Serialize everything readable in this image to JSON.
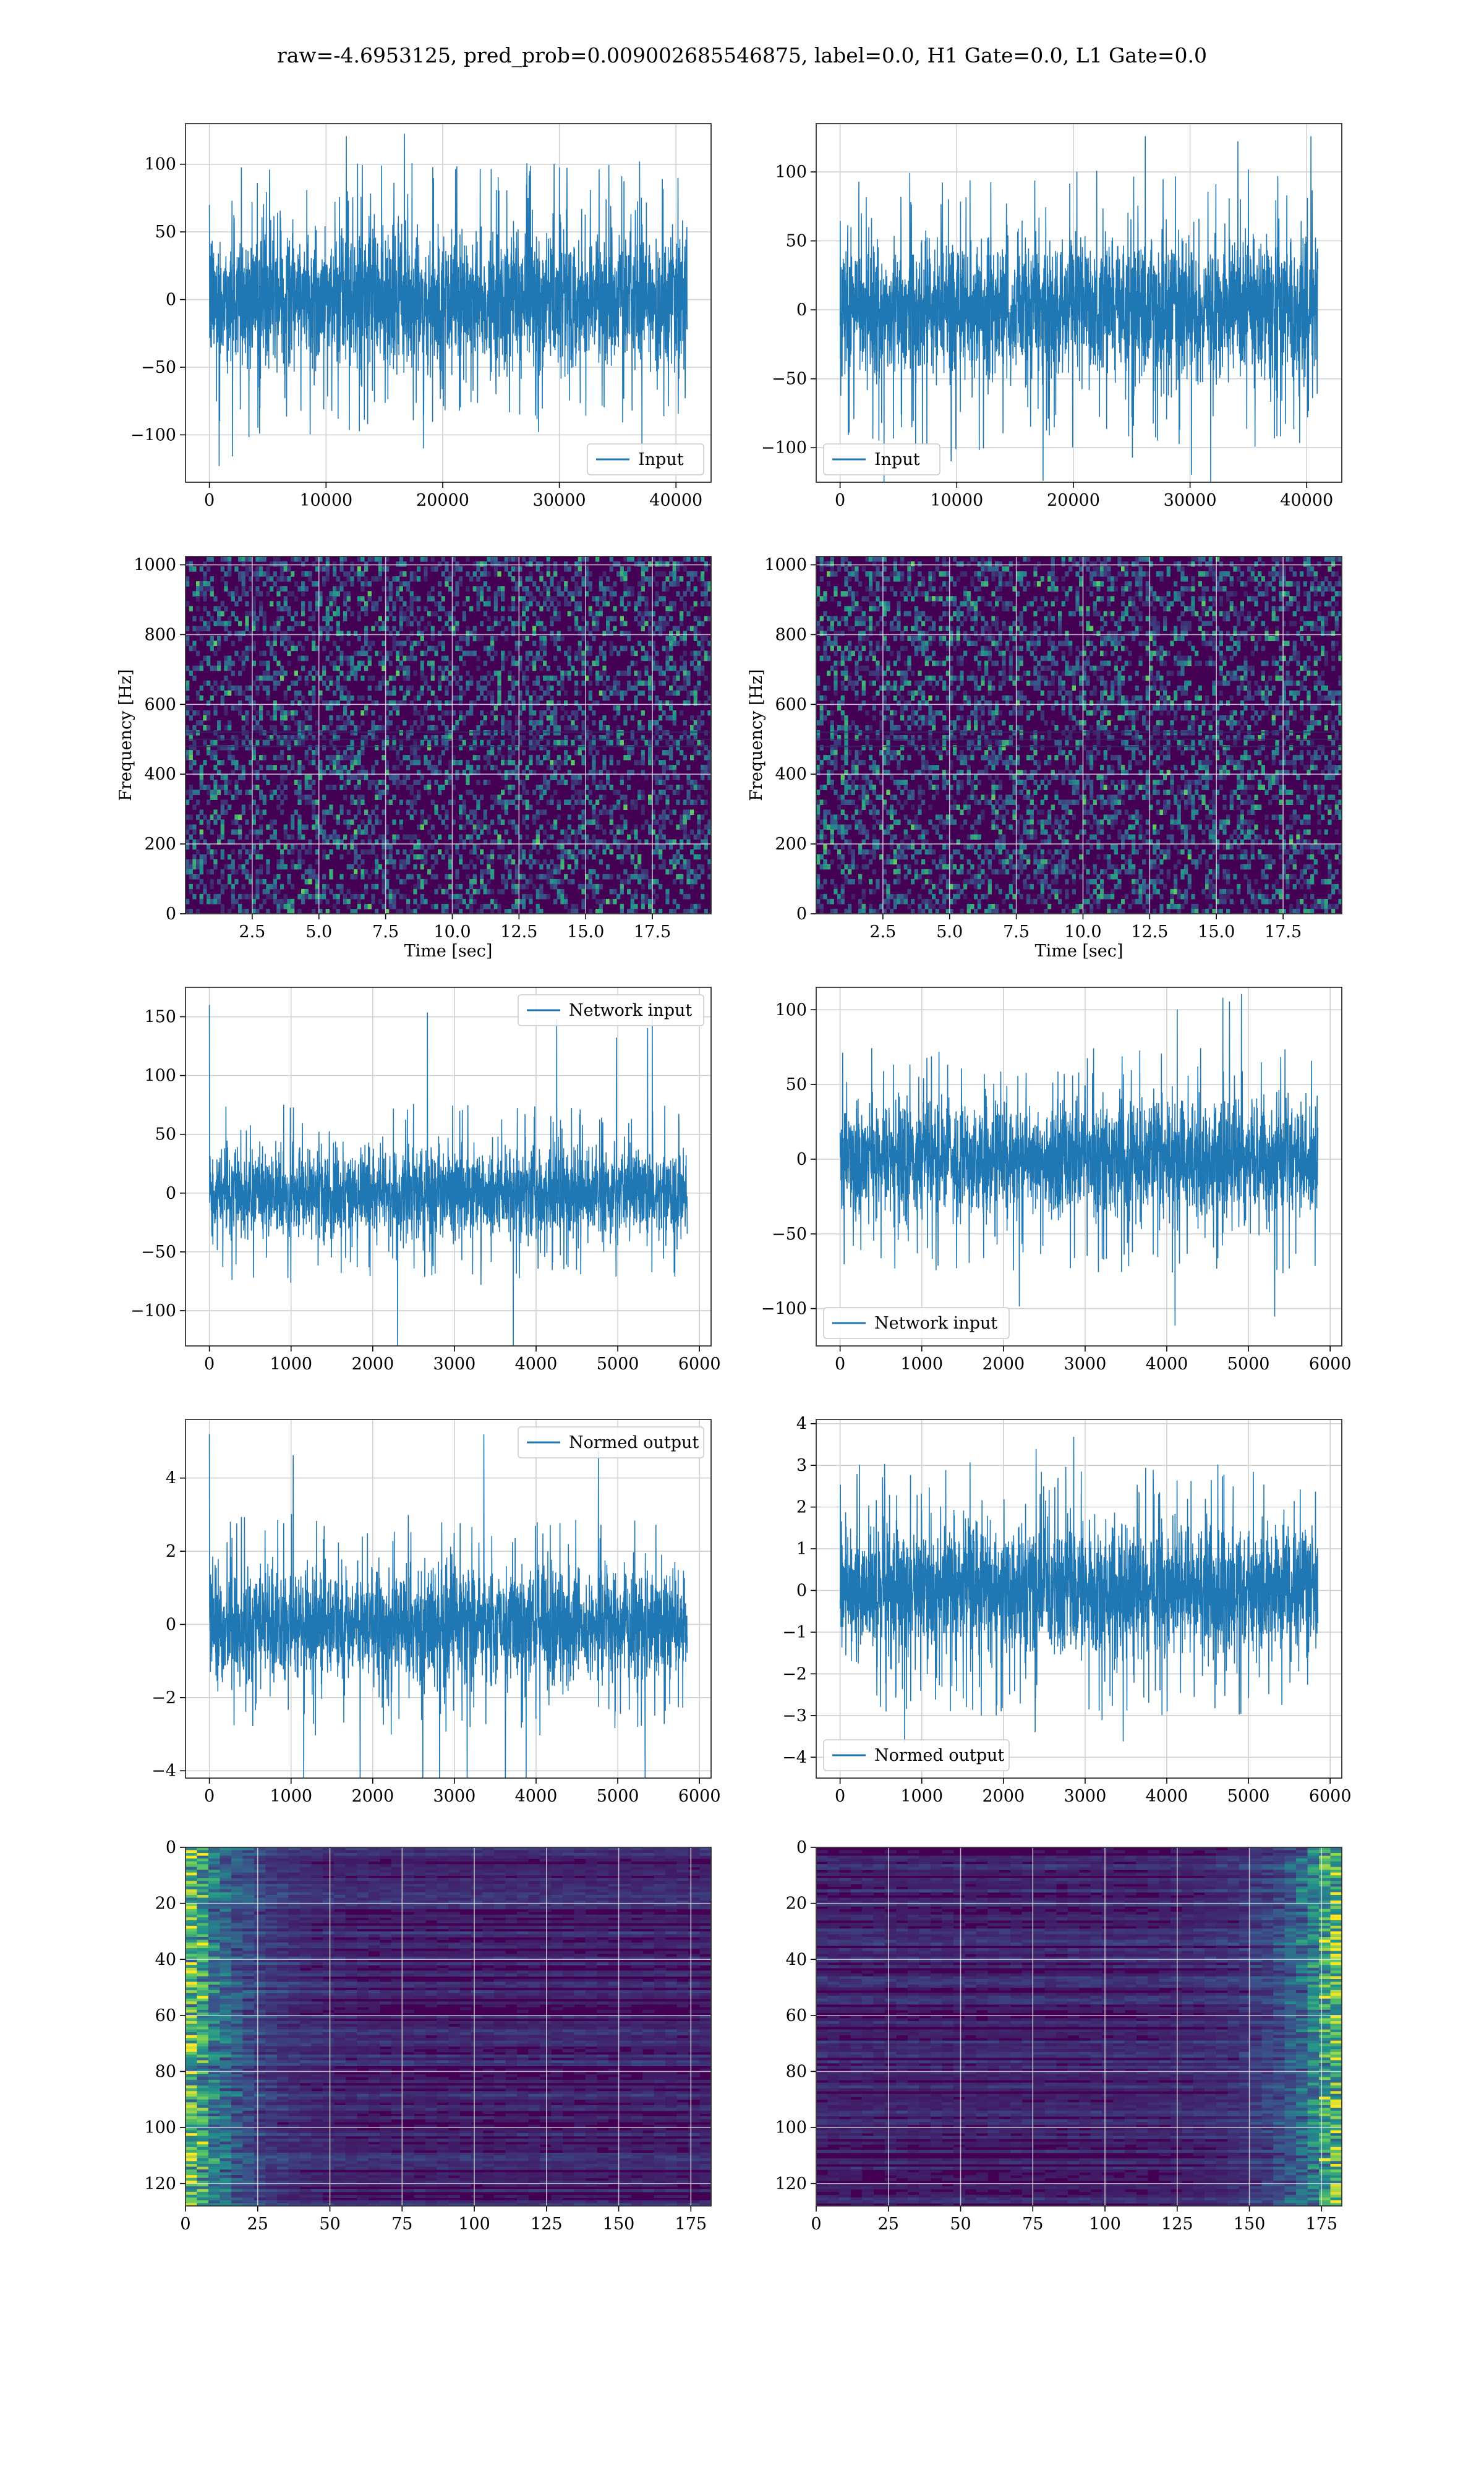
{
  "figure": {
    "suptitle": "raw=-4.6953125, pred_prob=0.009002685546875, label=0.0, H1 Gate=0.0, L1 Gate=0.0",
    "colors": {
      "line": "#1f77b4",
      "grid": "#d0d0d0",
      "viridis_dark": "#440154",
      "viridis_teal": "#21918c",
      "viridis_yellow": "#fde725"
    }
  },
  "chart_data": [
    {
      "id": "r0c0",
      "type": "line",
      "legend": "Input",
      "legend_loc": "lower-right",
      "x_range": [
        0,
        40960
      ],
      "ylim": [
        -135,
        130
      ],
      "amplitude_typical": 60,
      "amplitude_peak": 125,
      "xticks": [
        0,
        10000,
        20000,
        30000,
        40000
      ],
      "yticks": [
        -100,
        -50,
        0,
        50,
        100
      ],
      "xlabel": "",
      "ylabel": "",
      "grid": true
    },
    {
      "id": "r0c1",
      "type": "line",
      "legend": "Input",
      "legend_loc": "lower-left",
      "x_range": [
        0,
        40960
      ],
      "ylim": [
        -125,
        135
      ],
      "amplitude_typical": 60,
      "amplitude_peak": 130,
      "xticks": [
        0,
        10000,
        20000,
        30000,
        40000
      ],
      "yticks": [
        -100,
        -50,
        0,
        50,
        100
      ],
      "xlabel": "",
      "ylabel": "",
      "grid": true
    },
    {
      "id": "r1c0",
      "type": "heatmap",
      "subtype": "spectrogram",
      "colormap": "viridis",
      "xlim": [
        0,
        19.7
      ],
      "ylim": [
        0,
        1024
      ],
      "xticks": [
        2.5,
        5.0,
        7.5,
        10.0,
        12.5,
        15.0,
        17.5
      ],
      "yticks": [
        0,
        200,
        400,
        600,
        800,
        1000
      ],
      "xlabel": "Time [sec]",
      "ylabel": "Frequency [Hz]",
      "grid": true
    },
    {
      "id": "r1c1",
      "type": "heatmap",
      "subtype": "spectrogram",
      "colormap": "viridis",
      "xlim": [
        0,
        19.7
      ],
      "ylim": [
        0,
        1024
      ],
      "xticks": [
        2.5,
        5.0,
        7.5,
        10.0,
        12.5,
        15.0,
        17.5
      ],
      "yticks": [
        0,
        200,
        400,
        600,
        800,
        1000
      ],
      "xlabel": "Time [sec]",
      "ylabel": "Frequency [Hz]",
      "grid": true
    },
    {
      "id": "r2c0",
      "type": "line",
      "legend": "Network input",
      "legend_loc": "upper-right",
      "x_range": [
        0,
        5850
      ],
      "ylim": [
        -130,
        175
      ],
      "amplitude_typical": 45,
      "amplitude_peak": 160,
      "xticks": [
        0,
        1000,
        2000,
        3000,
        4000,
        5000,
        6000
      ],
      "yticks": [
        -100,
        -50,
        0,
        50,
        100,
        150
      ],
      "xlabel": "",
      "ylabel": "",
      "grid": true
    },
    {
      "id": "r2c1",
      "type": "line",
      "legend": "Network input",
      "legend_loc": "lower-left",
      "x_range": [
        0,
        5850
      ],
      "ylim": [
        -125,
        115
      ],
      "amplitude_typical": 45,
      "amplitude_peak": 112,
      "xticks": [
        0,
        1000,
        2000,
        3000,
        4000,
        5000,
        6000
      ],
      "yticks": [
        -100,
        -50,
        0,
        50,
        100
      ],
      "xlabel": "",
      "ylabel": "",
      "grid": true
    },
    {
      "id": "r3c0",
      "type": "line",
      "legend": "Normed output",
      "legend_loc": "upper-right",
      "x_range": [
        0,
        5850
      ],
      "ylim": [
        -4.2,
        5.6
      ],
      "amplitude_typical": 1.8,
      "amplitude_peak": 5.2,
      "xticks": [
        0,
        1000,
        2000,
        3000,
        4000,
        5000,
        6000
      ],
      "yticks": [
        -4,
        -2,
        0,
        2,
        4
      ],
      "xlabel": "",
      "ylabel": "",
      "grid": true
    },
    {
      "id": "r3c1",
      "type": "line",
      "legend": "Normed output",
      "legend_loc": "lower-left",
      "x_range": [
        0,
        5850
      ],
      "ylim": [
        -4.5,
        4.1
      ],
      "amplitude_typical": 1.8,
      "amplitude_peak": 3.7,
      "xticks": [
        0,
        1000,
        2000,
        3000,
        4000,
        5000,
        6000
      ],
      "yticks": [
        -4,
        -3,
        -2,
        -1,
        0,
        1,
        2,
        3,
        4
      ],
      "xlabel": "",
      "ylabel": "",
      "grid": true
    },
    {
      "id": "r4c0",
      "type": "heatmap",
      "subtype": "feature-map",
      "colormap": "viridis",
      "xlim": [
        0,
        182
      ],
      "ylim": [
        128,
        0
      ],
      "xticks": [
        0,
        25,
        50,
        75,
        100,
        125,
        150,
        175
      ],
      "yticks": [
        0,
        20,
        40,
        60,
        80,
        100,
        120
      ],
      "xlabel": "",
      "ylabel": "",
      "hot_side": "left",
      "grid": true
    },
    {
      "id": "r4c1",
      "type": "heatmap",
      "subtype": "feature-map",
      "colormap": "viridis",
      "xlim": [
        0,
        182
      ],
      "ylim": [
        128,
        0
      ],
      "xticks": [
        0,
        25,
        50,
        75,
        100,
        125,
        150,
        175
      ],
      "yticks": [
        0,
        20,
        40,
        60,
        80,
        100,
        120
      ],
      "xlabel": "",
      "ylabel": "",
      "hot_side": "right",
      "grid": true
    }
  ]
}
